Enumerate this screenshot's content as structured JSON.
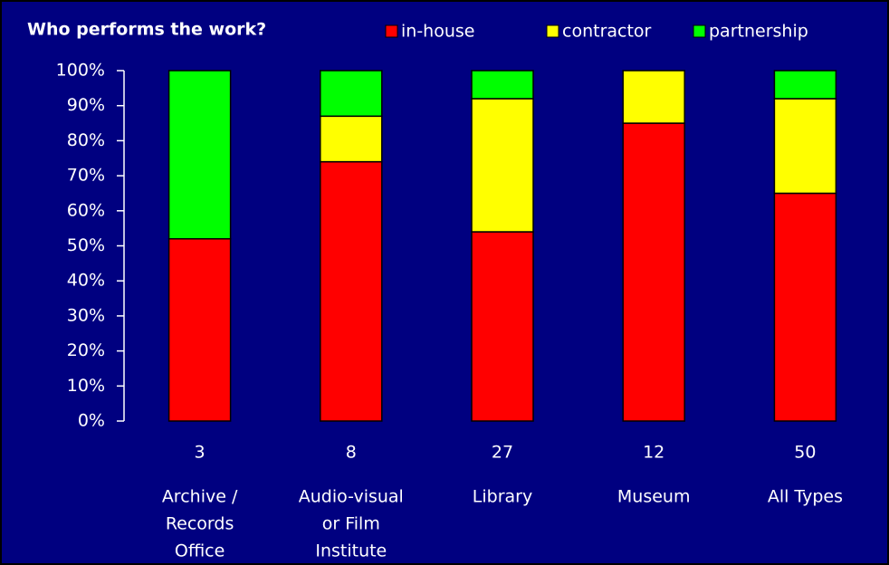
{
  "chart_data": {
    "type": "stacked_bar",
    "title": "Who performs the work?",
    "categories": [
      [
        "Archive /",
        "Records",
        "Office"
      ],
      [
        "Audio-visual",
        "or Film",
        "Institute"
      ],
      [
        "Library"
      ],
      [
        "Museum"
      ],
      [
        "All Types"
      ]
    ],
    "sample_sizes": [
      3,
      8,
      27,
      12,
      50
    ],
    "series": [
      {
        "name": "in-house",
        "color": "#ff0000",
        "values": [
          52,
          74,
          54,
          85,
          65
        ]
      },
      {
        "name": "contractor",
        "color": "#ffff00",
        "values": [
          0,
          13,
          38,
          15,
          27
        ]
      },
      {
        "name": "partnership",
        "color": "#00ff00",
        "values": [
          48,
          13,
          8,
          0,
          8
        ]
      }
    ],
    "ylim": [
      0,
      100
    ],
    "yticks": [
      {
        "value": 0,
        "label": "0%"
      },
      {
        "value": 10,
        "label": "10%"
      },
      {
        "value": 20,
        "label": "20%"
      },
      {
        "value": 30,
        "label": "30%"
      },
      {
        "value": 40,
        "label": "40%"
      },
      {
        "value": 50,
        "label": "50%"
      },
      {
        "value": 60,
        "label": "60%"
      },
      {
        "value": 70,
        "label": "70%"
      },
      {
        "value": 80,
        "label": "80%"
      },
      {
        "value": 90,
        "label": "90%"
      },
      {
        "value": 100,
        "label": "100%"
      }
    ],
    "background": "#000080"
  }
}
